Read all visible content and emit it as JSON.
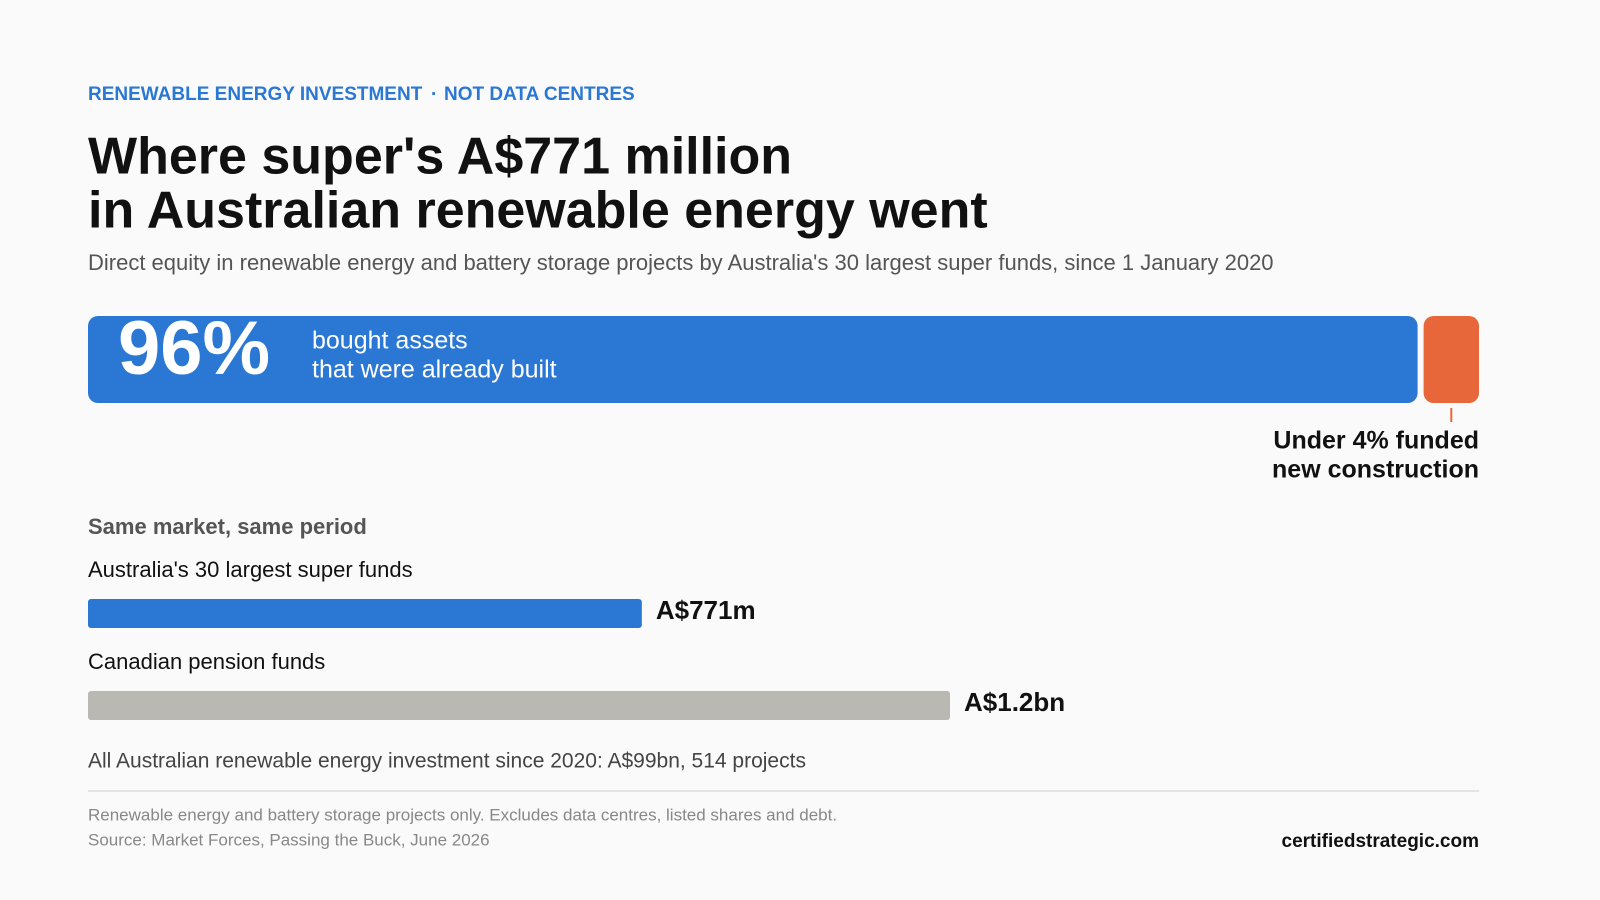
{
  "header": {
    "kicker": [
      "RENEWABLE ENERGY INVESTMENT",
      "NOT DATA CENTRES"
    ],
    "title": [
      "Where super's A$771 million",
      "in Australian renewable energy went"
    ],
    "subtitle": "Direct equity in renewable energy and battery storage projects by Australia's 30 largest super funds, since 1 January 2020"
  },
  "chart_data": [
    {
      "type": "share-bar",
      "values": [
        96,
        4
      ],
      "value_labels": [
        "96%",
        null
      ],
      "labels": [
        [
          "bought assets",
          "that were already built"
        ],
        [
          "Under 4% funded",
          "new construction"
        ]
      ],
      "colors": [
        "#2b78d4",
        "#e8673a"
      ]
    },
    {
      "type": "hbar",
      "title": "Same market, same period",
      "categories": [
        "Australia's 30 largest super funds",
        "Canadian pension funds"
      ],
      "values": [
        771,
        1200
      ],
      "value_labels": [
        "A$771m",
        "A$1.2bn"
      ],
      "colors": [
        "#2b78d4",
        "#b9b8b3"
      ]
    }
  ],
  "footer": {
    "summary": "All Australian renewable energy investment since 2020: A$99bn, 514 projects",
    "notes": [
      "Renewable energy and battery storage projects only. Excludes data centres, listed shares and debt.",
      "Source: Market Forces, Passing the Buck, June 2026"
    ],
    "site": "certifiedstrategic.com"
  }
}
